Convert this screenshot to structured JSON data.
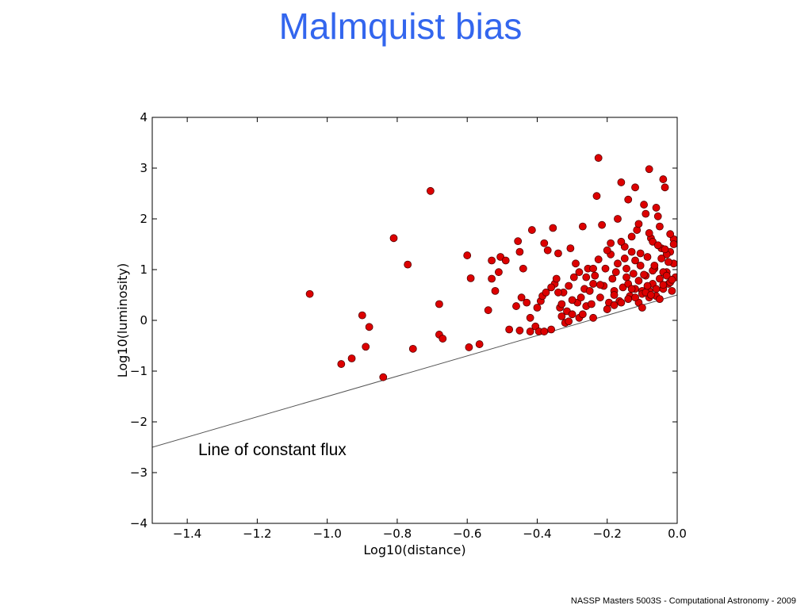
{
  "slide": {
    "title": "Malmquist bias",
    "footer": "NASSP Masters 5003S - Computational Astronomy - 2009"
  },
  "chart_data": {
    "type": "scatter",
    "title": "",
    "xlabel": "Log10(distance)",
    "ylabel": "Log10(luminosity)",
    "xlim": [
      -1.5,
      0.0
    ],
    "ylim": [
      -4,
      4
    ],
    "xticks": [
      -1.4,
      -1.2,
      -1.0,
      -0.8,
      -0.6,
      -0.4,
      -0.2,
      0.0
    ],
    "xtick_labels": [
      "−1.4",
      "−1.2",
      "−1.0",
      "−0.8",
      "−0.6",
      "−0.4",
      "−0.2",
      "0.0"
    ],
    "yticks": [
      -4,
      -3,
      -2,
      -1,
      0,
      1,
      2,
      3,
      4
    ],
    "ytick_labels": [
      "−4",
      "−3",
      "−2",
      "−1",
      "0",
      "1",
      "2",
      "3",
      "4"
    ],
    "grid": false,
    "marker_color": "#dd0000",
    "marker_edge_color": "#550000",
    "line_color": "#555555",
    "reference_line": {
      "label": "Line of constant flux",
      "x": [
        -1.5,
        0.0
      ],
      "y": [
        -2.5,
        0.5
      ]
    },
    "points": {
      "x": [
        -1.05,
        -0.96,
        -0.93,
        -0.9,
        -0.89,
        -0.88,
        -0.84,
        -0.81,
        -0.77,
        -0.755,
        -0.705,
        -0.68,
        -0.68,
        -0.67,
        -0.6,
        -0.595,
        -0.59,
        -0.565,
        -0.54,
        -0.53,
        -0.53,
        -0.52,
        -0.51,
        -0.505,
        -0.49,
        -0.48,
        -0.46,
        -0.455,
        -0.45,
        -0.45,
        -0.445,
        -0.44,
        -0.43,
        -0.42,
        -0.415,
        -0.405,
        -0.4,
        -0.395,
        -0.39,
        -0.385,
        -0.38,
        -0.375,
        -0.37,
        -0.36,
        -0.355,
        -0.35,
        -0.345,
        -0.34,
        -0.335,
        -0.33,
        -0.325,
        -0.32,
        -0.315,
        -0.31,
        -0.305,
        -0.3,
        -0.295,
        -0.29,
        -0.285,
        -0.28,
        -0.275,
        -0.27,
        -0.265,
        -0.26,
        -0.255,
        -0.25,
        -0.245,
        -0.24,
        -0.235,
        -0.23,
        -0.225,
        -0.225,
        -0.22,
        -0.215,
        -0.21,
        -0.205,
        -0.2,
        -0.195,
        -0.19,
        -0.185,
        -0.18,
        -0.175,
        -0.17,
        -0.165,
        -0.16,
        -0.155,
        -0.15,
        -0.145,
        -0.14,
        -0.135,
        -0.13,
        -0.125,
        -0.12,
        -0.115,
        -0.11,
        -0.105,
        -0.1,
        -0.095,
        -0.09,
        -0.085,
        -0.08,
        -0.075,
        -0.07,
        -0.065,
        -0.06,
        -0.055,
        -0.05,
        -0.045,
        -0.04,
        -0.035,
        -0.03,
        -0.025,
        -0.02,
        -0.015,
        -0.01,
        -0.005,
        -0.42,
        -0.38,
        -0.33,
        -0.31,
        -0.27,
        -0.24,
        -0.2,
        -0.18,
        -0.16,
        -0.14,
        -0.12,
        -0.1,
        -0.08,
        -0.06,
        -0.04,
        -0.02,
        -0.15,
        -0.13,
        -0.11,
        -0.09,
        -0.07,
        -0.05,
        -0.03,
        -0.01,
        -0.19,
        -0.17,
        -0.12,
        -0.08,
        -0.06,
        -0.04,
        -0.02,
        -0.1,
        -0.14,
        -0.18,
        -0.22,
        -0.26,
        -0.3,
        -0.34,
        -0.36,
        -0.28,
        -0.24,
        -0.2,
        -0.16,
        -0.12,
        -0.08,
        -0.04,
        -0.11,
        -0.07,
        -0.03,
        -0.13,
        -0.09,
        -0.05,
        -0.01,
        -0.105,
        -0.065,
        -0.025,
        -0.145,
        -0.085,
        -0.045,
        -0.015,
        -0.055,
        -0.035,
        -0.095,
        -0.075
      ],
      "y": [
        0.52,
        -0.86,
        -0.75,
        0.1,
        -0.52,
        -0.13,
        -1.12,
        1.62,
        1.1,
        -0.56,
        2.55,
        0.32,
        -0.28,
        -0.36,
        1.28,
        -0.53,
        0.83,
        -0.47,
        0.2,
        1.18,
        0.82,
        0.58,
        0.95,
        1.25,
        1.18,
        -0.18,
        0.28,
        1.56,
        1.35,
        -0.2,
        0.45,
        1.02,
        0.35,
        0.05,
        1.78,
        -0.12,
        0.25,
        -0.22,
        0.38,
        0.48,
        1.52,
        0.55,
        1.38,
        -0.18,
        1.82,
        0.72,
        0.82,
        1.32,
        0.25,
        0.32,
        0.55,
        -0.05,
        0.18,
        0.68,
        1.42,
        0.12,
        0.85,
        1.12,
        0.35,
        0.05,
        0.45,
        1.85,
        0.62,
        0.28,
        1.02,
        0.58,
        0.32,
        0.72,
        0.88,
        2.45,
        1.2,
        3.2,
        0.45,
        1.88,
        0.68,
        1.02,
        0.22,
        0.35,
        1.52,
        0.82,
        0.58,
        0.95,
        1.12,
        0.38,
        2.72,
        0.65,
        1.22,
        0.85,
        2.38,
        0.48,
        1.35,
        0.92,
        0.62,
        1.78,
        0.35,
        1.08,
        0.58,
        2.28,
        0.88,
        1.25,
        0.45,
        1.62,
        0.72,
        1.02,
        0.48,
        2.05,
        0.82,
        1.42,
        0.62,
        2.62,
        0.95,
        0.72,
        1.35,
        0.58,
        1.12,
        0.85,
        -0.22,
        -0.22,
        0.08,
        -0.02,
        0.12,
        0.05,
        0.22,
        0.3,
        0.35,
        0.42,
        0.45,
        0.52,
        0.58,
        0.62,
        0.7,
        0.75,
        1.45,
        1.65,
        1.9,
        2.1,
        1.55,
        1.85,
        1.3,
        1.6,
        1.3,
        2.0,
        2.62,
        2.98,
        2.22,
        2.78,
        1.7,
        0.25,
        0.72,
        0.5,
        0.7,
        0.85,
        0.4,
        0.55,
        0.65,
        0.95,
        1.02,
        1.38,
        1.55,
        1.18,
        1.72,
        0.95,
        0.78,
        0.98,
        0.88,
        0.62,
        0.55,
        0.42,
        1.5,
        1.32,
        1.08,
        1.15,
        1.02,
        0.68,
        1.22,
        0.8,
        1.48,
        1.4,
        0.9,
        0.5
      ]
    }
  }
}
